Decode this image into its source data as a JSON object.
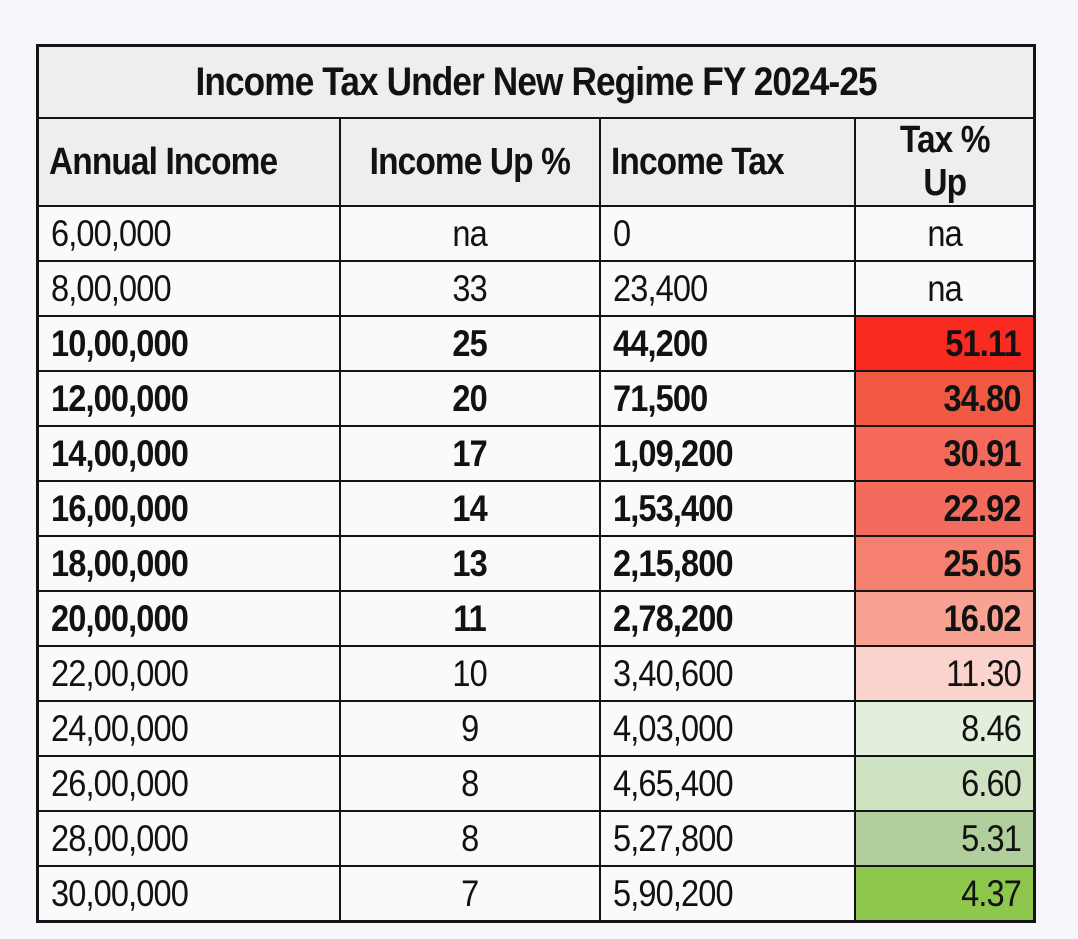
{
  "page": {
    "background_color": "#f7f6fa",
    "text_color": "#121212",
    "table_border_color": "#141414",
    "header_fill_color": "#efedee",
    "cell_fill_color": "#faf9fb"
  },
  "chart_data": {
    "type": "table",
    "title": "Income Tax Under New Regime FY 2024-25",
    "columns": [
      "Annual Income",
      "Income Up %",
      "Income Tax",
      "Tax % Up"
    ],
    "column_alignments": [
      "left",
      "center",
      "left",
      "right"
    ],
    "rows": [
      {
        "annual_income": "6,00,000",
        "income_up_pct": "na",
        "income_tax": "0",
        "tax_up_pct": "na",
        "bold": false,
        "tax_up_fill": "#faf9fb"
      },
      {
        "annual_income": "8,00,000",
        "income_up_pct": "33",
        "income_tax": "23,400",
        "tax_up_pct": "na",
        "bold": false,
        "tax_up_fill": "#faf9fb"
      },
      {
        "annual_income": "10,00,000",
        "income_up_pct": "25",
        "income_tax": "44,200",
        "tax_up_pct": "51.11",
        "bold": true,
        "tax_up_fill": "#f92b20"
      },
      {
        "annual_income": "12,00,000",
        "income_up_pct": "20",
        "income_tax": "71,500",
        "tax_up_pct": "34.80",
        "bold": true,
        "tax_up_fill": "#f25943"
      },
      {
        "annual_income": "14,00,000",
        "income_up_pct": "17",
        "income_tax": "1,09,200",
        "tax_up_pct": "30.91",
        "bold": true,
        "tax_up_fill": "#f4695a"
      },
      {
        "annual_income": "16,00,000",
        "income_up_pct": "14",
        "income_tax": "1,53,400",
        "tax_up_pct": "22.92",
        "bold": true,
        "tax_up_fill": "#f36b5c"
      },
      {
        "annual_income": "18,00,000",
        "income_up_pct": "13",
        "income_tax": "2,15,800",
        "tax_up_pct": "25.05",
        "bold": true,
        "tax_up_fill": "#f5806f"
      },
      {
        "annual_income": "20,00,000",
        "income_up_pct": "11",
        "income_tax": "2,78,200",
        "tax_up_pct": "16.02",
        "bold": true,
        "tax_up_fill": "#f7a292"
      },
      {
        "annual_income": "22,00,000",
        "income_up_pct": "10",
        "income_tax": "3,40,600",
        "tax_up_pct": "11.30",
        "bold": false,
        "tax_up_fill": "#fad3cc"
      },
      {
        "annual_income": "24,00,000",
        "income_up_pct": "9",
        "income_tax": "4,03,000",
        "tax_up_pct": "8.46",
        "bold": false,
        "tax_up_fill": "#e2efdc"
      },
      {
        "annual_income": "26,00,000",
        "income_up_pct": "8",
        "income_tax": "4,65,400",
        "tax_up_pct": "6.60",
        "bold": false,
        "tax_up_fill": "#cfe3c3"
      },
      {
        "annual_income": "28,00,000",
        "income_up_pct": "8",
        "income_tax": "5,27,800",
        "tax_up_pct": "5.31",
        "bold": false,
        "tax_up_fill": "#b0cf9d"
      },
      {
        "annual_income": "30,00,000",
        "income_up_pct": "7",
        "income_tax": "5,90,200",
        "tax_up_pct": "4.37",
        "bold": false,
        "tax_up_fill": "#8dc74b"
      }
    ]
  }
}
